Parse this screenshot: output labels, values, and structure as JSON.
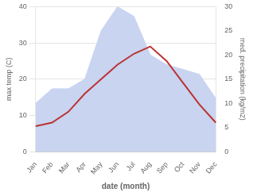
{
  "chart_data": {
    "type": "line",
    "categories": [
      "Jan",
      "Feb",
      "Mar",
      "Apr",
      "May",
      "Jun",
      "Jul",
      "Aug",
      "Sep",
      "Oct",
      "Nov",
      "Dec"
    ],
    "series": [
      {
        "type": "area",
        "color": "#c8d4f0",
        "axis": "y2",
        "values": [
          10,
          13,
          13,
          15,
          25,
          30,
          28,
          20,
          18,
          17,
          16,
          11
        ]
      },
      {
        "type": "line",
        "color": "#bb3333",
        "axis": "y",
        "values": [
          7,
          8,
          11,
          16,
          20,
          24,
          27,
          29,
          25,
          19,
          13,
          8
        ]
      }
    ],
    "xlabel": "date (month)",
    "ylabel": "max temp (C)",
    "y2label": "med. precipitation (kg/m2)",
    "ylim": [
      0,
      40
    ],
    "yticks": [
      0,
      10,
      20,
      30,
      40
    ],
    "y2lim": [
      0,
      30
    ],
    "y2ticks": [
      0,
      5,
      10,
      15,
      20,
      25,
      30
    ],
    "grid": true
  }
}
